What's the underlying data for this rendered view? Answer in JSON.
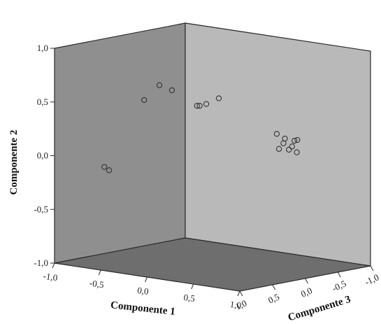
{
  "chart_data": {
    "type": "scatter",
    "dimensions": 3,
    "xlabel": "Componente 1",
    "ylabel": "Componente 2",
    "zlabel": "Componente 3",
    "xlim": [
      -1.0,
      1.0
    ],
    "ylim": [
      -1.0,
      1.0
    ],
    "zlim": [
      -1.0,
      1.0
    ],
    "x_ticks": [
      "-1,0",
      "-0,5",
      "0,0",
      "0,5",
      "1,0"
    ],
    "y_ticks": [
      "-1,0",
      "-0,5",
      "0,0",
      "0,5",
      "1,0"
    ],
    "z_ticks": [
      "1,0",
      "0,5",
      "0,0",
      "-0,5",
      "-1,0"
    ],
    "marker": "open-circle",
    "colors": {
      "back_wall": "#8f8f8f",
      "right_wall": "#b9b9b9",
      "floor": "#6e6e6e",
      "edges": "#2a2a2a",
      "marker": "#333333"
    },
    "points": [
      {
        "x": -0.85,
        "y": -0.15,
        "z": 0.45
      },
      {
        "x": -0.82,
        "y": -0.18,
        "z": 0.42
      },
      {
        "x": -0.35,
        "y": 0.55,
        "z": 0.55
      },
      {
        "x": -0.15,
        "y": 0.72,
        "z": 0.6
      },
      {
        "x": -0.05,
        "y": 0.68,
        "z": 0.55
      },
      {
        "x": 0.15,
        "y": 0.55,
        "z": 0.45
      },
      {
        "x": 0.2,
        "y": 0.56,
        "z": 0.48
      },
      {
        "x": 0.25,
        "y": 0.58,
        "z": 0.45
      },
      {
        "x": 0.35,
        "y": 0.64,
        "z": 0.4
      },
      {
        "x": 0.2,
        "y": 0.16,
        "z": -0.7
      },
      {
        "x": 0.26,
        "y": 0.12,
        "z": -0.74
      },
      {
        "x": 0.3,
        "y": 0.09,
        "z": -0.66
      },
      {
        "x": 0.32,
        "y": 0.1,
        "z": -0.8
      },
      {
        "x": 0.35,
        "y": 0.06,
        "z": -0.72
      },
      {
        "x": 0.38,
        "y": 0.12,
        "z": -0.76
      },
      {
        "x": 0.28,
        "y": 0.04,
        "z": -0.62
      },
      {
        "x": 0.33,
        "y": 0.03,
        "z": -0.7
      },
      {
        "x": 0.36,
        "y": 0.0,
        "z": -0.78
      }
    ]
  }
}
